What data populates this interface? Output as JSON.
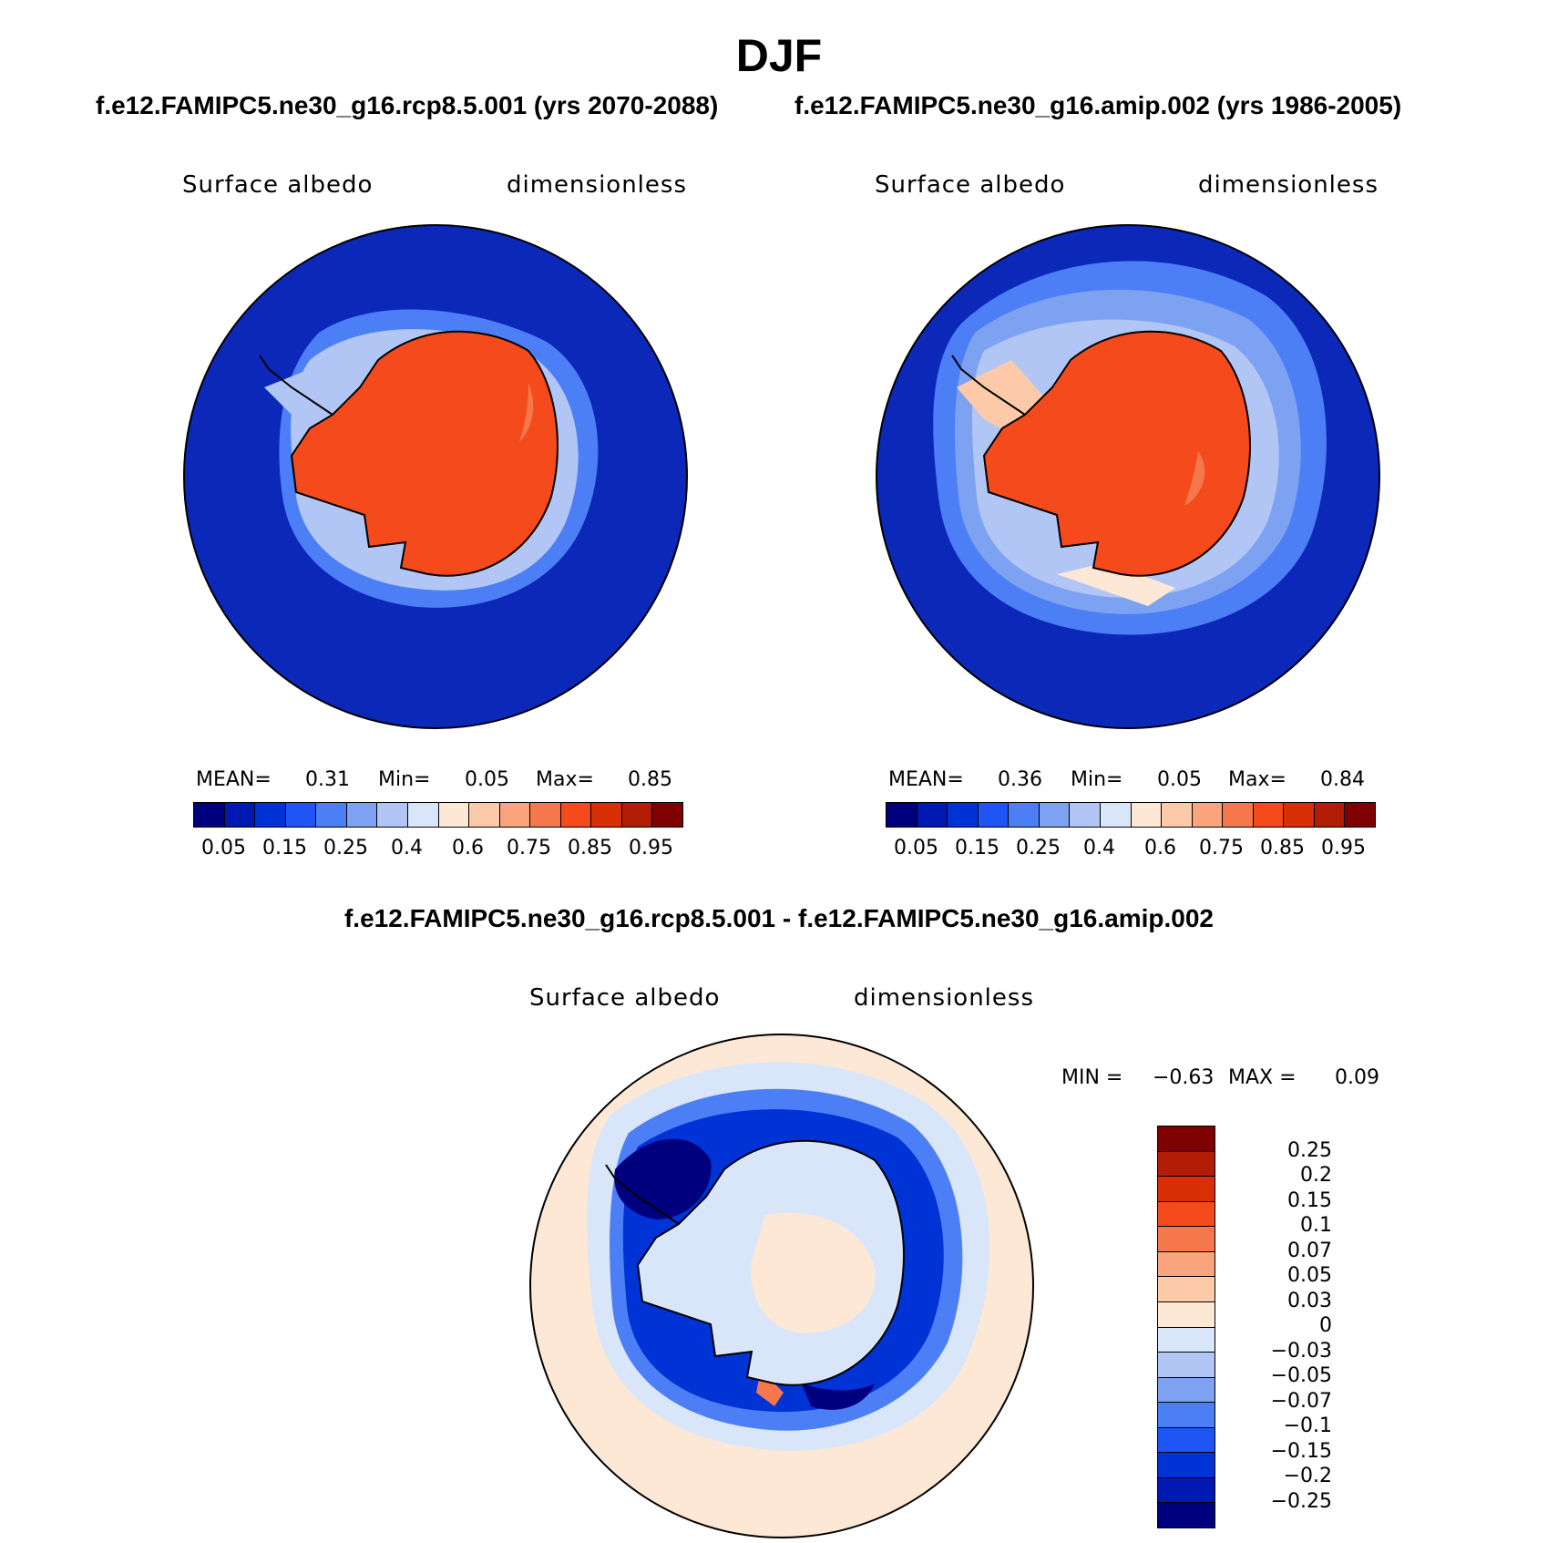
{
  "figure": {
    "title": "DJF",
    "left_case": "f.e12.FAMIPC5.ne30_g16.rcp8.5.001 (yrs 2070-2088)",
    "right_case": "f.e12.FAMIPC5.ne30_g16.amip.002 (yrs 1986-2005)",
    "diff_title": "f.e12.FAMIPC5.ne30_g16.rcp8.5.001 - f.e12.FAMIPC5.ne30_g16.amip.002"
  },
  "panels": [
    {
      "variable": "Surface albedo",
      "units": "dimensionless",
      "mean_label": "MEAN=",
      "mean_value": "0.31",
      "min_label": "Min=",
      "min_value": "0.05",
      "max_label": "Max=",
      "max_value": "0.85"
    },
    {
      "variable": "Surface albedo",
      "units": "dimensionless",
      "mean_label": "MEAN=",
      "mean_value": "0.36",
      "min_label": "Min=",
      "min_value": "0.05",
      "max_label": "Max=",
      "max_value": "0.84"
    },
    {
      "variable": "Surface albedo",
      "units": "dimensionless",
      "min_label": "MIN =",
      "min_value": "−0.63",
      "max_label": "MAX =",
      "max_value": "0.09"
    }
  ],
  "colorbar_abs": {
    "colors": [
      "#00007f",
      "#0019b2",
      "#0033d6",
      "#1f55f5",
      "#4c7ef5",
      "#7ea2f2",
      "#b1c6f5",
      "#d9e6fa",
      "#fde8d5",
      "#fccaa8",
      "#f9a47c",
      "#f5774c",
      "#f44a1c",
      "#d92f06",
      "#b31d05",
      "#7f0000"
    ],
    "tick_labels": [
      "0.05",
      "0.15",
      "0.25",
      "0.4",
      "0.6",
      "0.75",
      "0.85",
      "0.95"
    ]
  },
  "colorbar_diff": {
    "colors": [
      "#7f0000",
      "#b31d05",
      "#d92f06",
      "#f44a1c",
      "#f5774c",
      "#f9a47c",
      "#fccaa8",
      "#fde8d5",
      "#d9e6fa",
      "#b1c6f5",
      "#7ea2f2",
      "#4c7ef5",
      "#1f55f5",
      "#0033d6",
      "#0019b2",
      "#00007f"
    ],
    "tick_labels": [
      "0.25",
      "0.2",
      "0.15",
      "0.1",
      "0.07",
      "0.05",
      "0.03",
      "0",
      "−0.03",
      "−0.05",
      "−0.07",
      "−0.1",
      "−0.15",
      "−0.2",
      "−0.25"
    ]
  },
  "chart_data": [
    {
      "type": "heatmap",
      "title": "Surface albedo",
      "subtitle": "f.e12.FAMIPC5.ne30_g16.rcp8.5.001 (yrs 2070-2088)",
      "units": "dimensionless",
      "projection": "south polar stereographic",
      "levels": [
        0.05,
        0.1,
        0.15,
        0.2,
        0.25,
        0.3,
        0.4,
        0.5,
        0.6,
        0.7,
        0.75,
        0.8,
        0.85,
        0.9,
        0.95
      ],
      "stats": {
        "mean": 0.31,
        "min": 0.05,
        "max": 0.85
      }
    },
    {
      "type": "heatmap",
      "title": "Surface albedo",
      "subtitle": "f.e12.FAMIPC5.ne30_g16.amip.002 (yrs 1986-2005)",
      "units": "dimensionless",
      "projection": "south polar stereographic",
      "levels": [
        0.05,
        0.1,
        0.15,
        0.2,
        0.25,
        0.3,
        0.4,
        0.5,
        0.6,
        0.7,
        0.75,
        0.8,
        0.85,
        0.9,
        0.95
      ],
      "stats": {
        "mean": 0.36,
        "min": 0.05,
        "max": 0.84
      }
    },
    {
      "type": "heatmap",
      "title": "Surface albedo",
      "subtitle": "f.e12.FAMIPC5.ne30_g16.rcp8.5.001 - f.e12.FAMIPC5.ne30_g16.amip.002",
      "units": "dimensionless",
      "projection": "south polar stereographic",
      "levels": [
        -0.25,
        -0.2,
        -0.15,
        -0.1,
        -0.07,
        -0.05,
        -0.03,
        0,
        0.03,
        0.05,
        0.07,
        0.1,
        0.15,
        0.2,
        0.25
      ],
      "stats": {
        "min": -0.63,
        "max": 0.09
      }
    }
  ]
}
